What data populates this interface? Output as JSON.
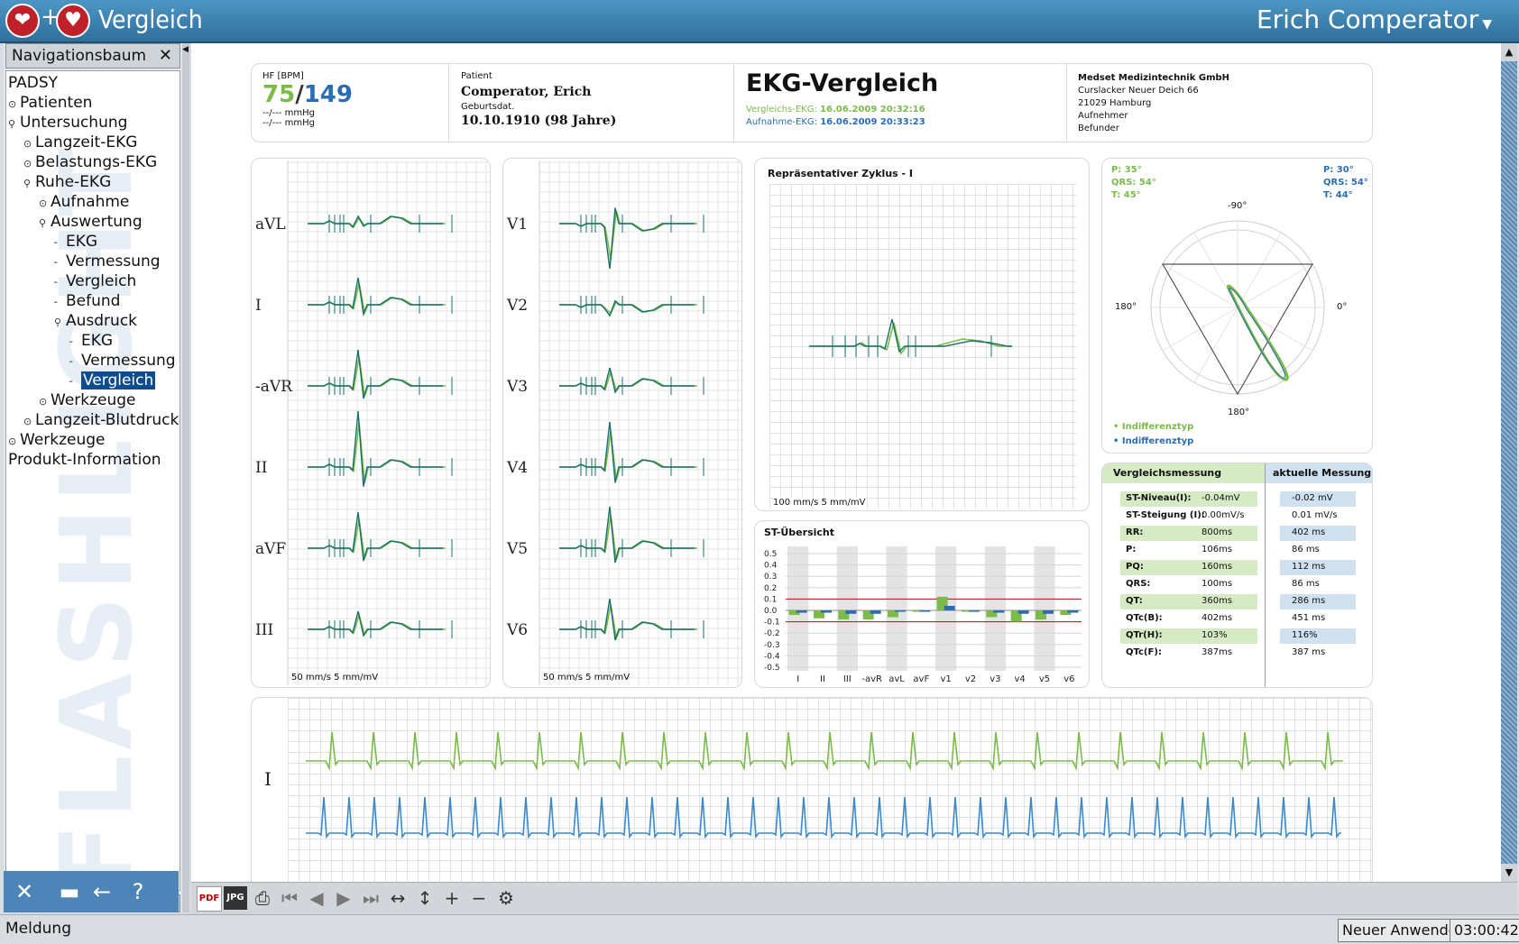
{
  "app": {
    "title": "Vergleich",
    "user": "Erich Comperator",
    "logo_plus": "+"
  },
  "nav": {
    "header": "Navigationsbaum",
    "close": "✕",
    "watermark": "FLASHLIGHT",
    "tree": [
      {
        "label": "PADSY",
        "indent": 0,
        "node": ""
      },
      {
        "label": "Patienten",
        "indent": 0,
        "node": "o"
      },
      {
        "label": "Untersuchung",
        "indent": 0,
        "node": "p"
      },
      {
        "label": "Langzeit-EKG",
        "indent": 1,
        "node": "o"
      },
      {
        "label": "Belastungs-EKG",
        "indent": 1,
        "node": "o"
      },
      {
        "label": "Ruhe-EKG",
        "indent": 1,
        "node": "p"
      },
      {
        "label": "Aufnahme",
        "indent": 2,
        "node": "o"
      },
      {
        "label": "Auswertung",
        "indent": 2,
        "node": "p"
      },
      {
        "label": "EKG",
        "indent": 3,
        "node": ""
      },
      {
        "label": "Vermessung",
        "indent": 3,
        "node": ""
      },
      {
        "label": "Vergleich",
        "indent": 3,
        "node": ""
      },
      {
        "label": "Befund",
        "indent": 3,
        "node": ""
      },
      {
        "label": "Ausdruck",
        "indent": 3,
        "node": "p"
      },
      {
        "label": "EKG",
        "indent": 4,
        "node": ""
      },
      {
        "label": "Vermessung",
        "indent": 4,
        "node": ""
      },
      {
        "label": "Vergleich",
        "indent": 4,
        "node": "",
        "selected": true
      },
      {
        "label": "Werkzeuge",
        "indent": 2,
        "node": "o"
      },
      {
        "label": "Langzeit-Blutdruck",
        "indent": 1,
        "node": "o"
      },
      {
        "label": "Werkzeuge",
        "indent": 0,
        "node": "o"
      },
      {
        "label": "Produkt-Information",
        "indent": 0,
        "node": ""
      }
    ]
  },
  "header": {
    "hf_label": "HF [BPM]",
    "hf_a": "75",
    "hf_sep": "/",
    "hf_b": "149",
    "bp1": "--/--- mmHg",
    "bp2": "--/--- mmHg",
    "patient_label": "Patient",
    "patient_name": "Comperator, Erich",
    "dob_label": "Geburtsdat.",
    "dob": "10.10.1910 (98 Jahre)",
    "title": "EKG-Vergleich",
    "vergleich_label": "Vergleichs-EKG:",
    "vergleich_date": "16.06.2009 20:32:16",
    "aufnahme_label": "Aufnahme-EKG:",
    "aufnahme_date": "16.06.2009 20:33:23",
    "company": "Medset Medizintechnik GmbH",
    "addr1": "Curslacker Neuer Deich 66",
    "addr2": "21029 Hamburg",
    "aufnehmer": "Aufnehmer",
    "befunder": "Befunder"
  },
  "limb_leads": [
    "aVL",
    "I",
    "-aVR",
    "II",
    "aVF",
    "III"
  ],
  "chest_leads": [
    "V1",
    "V2",
    "V3",
    "V4",
    "V5",
    "V6"
  ],
  "lead_scale": "50 mm/s 5 mm/mV",
  "rep": {
    "title": "Repräsentativer Zyklus - I",
    "scale": "100 mm/s 5 mm/mV"
  },
  "vector": {
    "left": [
      "P: 35°",
      "QRS: 54°",
      "T: 45°"
    ],
    "right": [
      "P: 30°",
      "QRS: 54°",
      "T: 44°"
    ],
    "deg_top": "-90°",
    "deg_left": "180°",
    "deg_right": "0°",
    "deg_bottom": "180°",
    "legend1": "• Indifferenztyp",
    "legend2": "• Indifferenztyp"
  },
  "st": {
    "title": "ST-Übersicht",
    "yticks": [
      "0.5",
      "0.4",
      "0.3",
      "0.2",
      "0.1",
      "0.0",
      "-0.1",
      "-0.2",
      "-0.3",
      "-0.4",
      "-0.5"
    ],
    "leads": [
      "I",
      "II",
      "III",
      "-avR",
      "avL",
      "avF",
      "v1",
      "v2",
      "v3",
      "v4",
      "v5",
      "v6"
    ]
  },
  "chart_data": {
    "type": "bar",
    "title": "ST-Übersicht",
    "categories": [
      "I",
      "II",
      "III",
      "-avR",
      "avL",
      "avF",
      "v1",
      "v2",
      "v3",
      "v4",
      "v5",
      "v6"
    ],
    "series": [
      {
        "values": [
          -0.04,
          -0.07,
          -0.08,
          -0.08,
          -0.06,
          0.0,
          0.12,
          0.0,
          -0.06,
          -0.1,
          -0.08,
          -0.04
        ]
      },
      {
        "values": [
          -0.02,
          -0.02,
          -0.03,
          -0.03,
          0.0,
          0.0,
          0.04,
          0.0,
          -0.02,
          -0.03,
          -0.03,
          -0.02
        ]
      }
    ],
    "ylim": [
      -0.5,
      0.5
    ],
    "reference_lines": [
      0.1,
      -0.1
    ],
    "colors": [
      "#7cbb4a",
      "#2a6db5"
    ]
  },
  "measure": {
    "h1": "Vergleichsmessung",
    "h2": "aktuelle Messung",
    "rows": [
      {
        "label": "ST-Niveau(I):",
        "v1": "-0.04mV",
        "v2": "-0.02 mV"
      },
      {
        "label": "ST-Steigung (I):",
        "v1": "0.00mV/s",
        "v2": "0.01 mV/s"
      },
      {
        "label": "RR:",
        "v1": "800ms",
        "v2": "402 ms"
      },
      {
        "label": "P:",
        "v1": "106ms",
        "v2": "86 ms"
      },
      {
        "label": "PQ:",
        "v1": "160ms",
        "v2": "112 ms"
      },
      {
        "label": "QRS:",
        "v1": "100ms",
        "v2": "86 ms"
      },
      {
        "label": "QT:",
        "v1": "360ms",
        "v2": "286 ms"
      },
      {
        "label": "QTc(B):",
        "v1": "402ms",
        "v2": "451 ms"
      },
      {
        "label": "QTr(H):",
        "v1": "103%",
        "v2": "116%"
      },
      {
        "label": "QTc(F):",
        "v1": "387ms",
        "v2": "387 ms"
      }
    ]
  },
  "rhythm": {
    "lead": "I"
  },
  "toolbar": {
    "pdf": "PDF",
    "jpg": "JPG"
  },
  "status": {
    "message": "Meldung",
    "user": "Neuer Anwender",
    "time": "03:00:42"
  },
  "colors": {
    "green": "#7cbb4a",
    "blue": "#2a6db5",
    "teal": "#1a6f6a",
    "title_bar": "#3a80b0",
    "selected": "#0d4d8f"
  }
}
